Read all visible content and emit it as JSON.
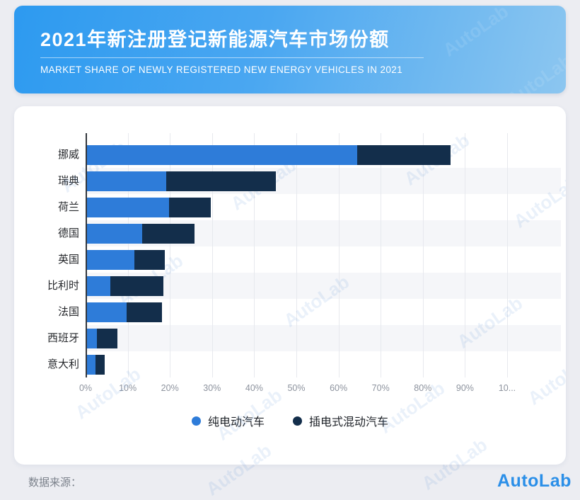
{
  "header": {
    "title": "2021年新注册登记新能源汽车市场份额",
    "subtitle": "MARKET SHARE OF NEWLY REGISTERED NEW ENERGY VEHICLES IN 2021"
  },
  "chart_data": {
    "type": "bar",
    "orientation": "horizontal",
    "stacked": true,
    "categories": [
      "挪威",
      "瑞典",
      "荷兰",
      "德国",
      "英国",
      "比利时",
      "法国",
      "西班牙",
      "意大利"
    ],
    "series": [
      {
        "name": "纯电动汽车",
        "color": "#2e7cd9",
        "values": [
          64.5,
          19.1,
          19.8,
          13.5,
          11.6,
          5.8,
          9.7,
          2.7,
          2.3
        ]
      },
      {
        "name": "插电式混动汽车",
        "color": "#132e4b",
        "values": [
          22.0,
          26.0,
          9.9,
          12.4,
          7.2,
          12.7,
          8.5,
          4.9,
          2.2
        ]
      }
    ],
    "x_ticks": [
      "0%",
      "10%",
      "20%",
      "30%",
      "40%",
      "50%",
      "60%",
      "70%",
      "80%",
      "90%",
      "10..."
    ],
    "xlim": [
      0,
      100
    ],
    "grid": true,
    "legend_position": "bottom",
    "row_stripes": true
  },
  "watermark": {
    "text": "AutoLab"
  },
  "footer": {
    "source_label": "数据来源：",
    "brand": "AutoLab"
  },
  "colors": {
    "bev": "#2e7cd9",
    "phev": "#132e4b",
    "header_gradient_start": "#2d9af0",
    "header_gradient_end": "#8cc6f0",
    "page_bg": "#ecedf2",
    "card_bg": "#ffffff"
  }
}
